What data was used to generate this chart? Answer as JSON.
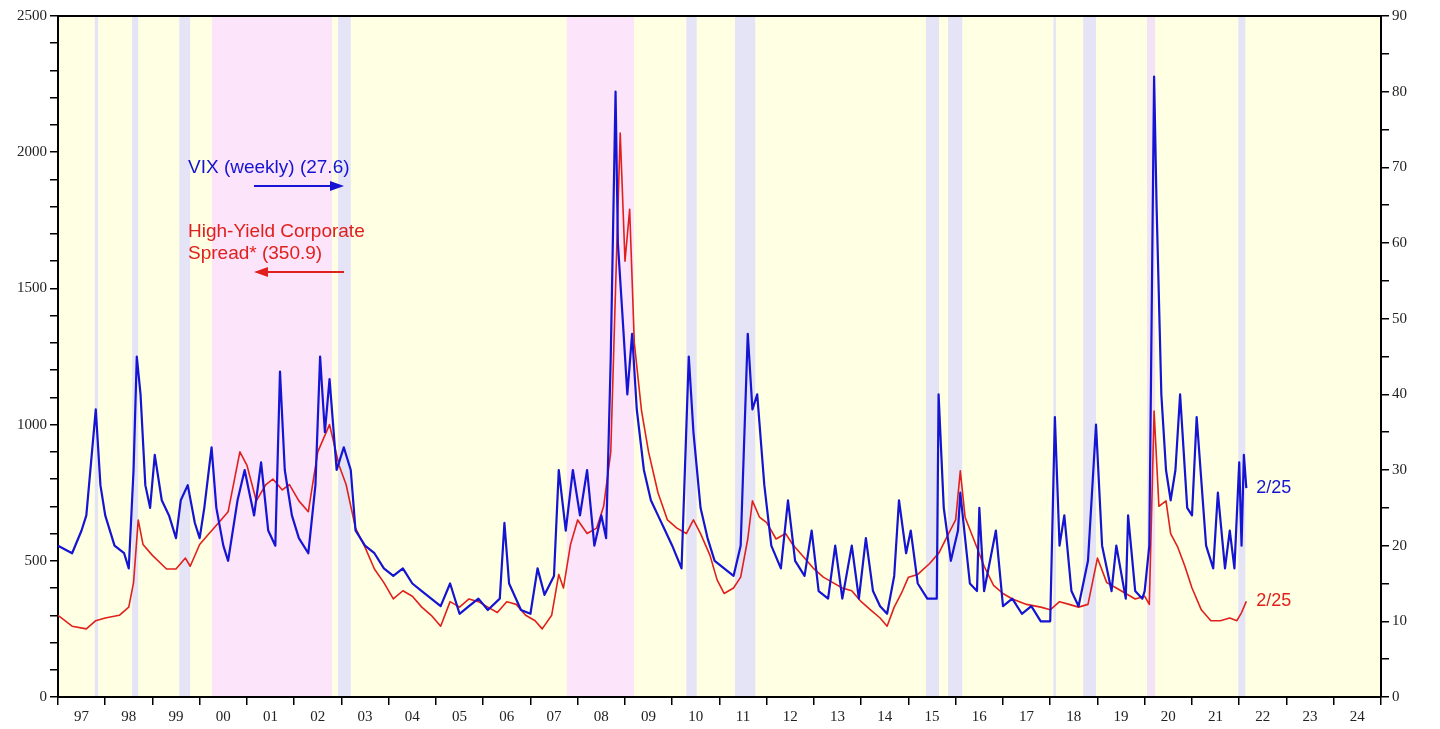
{
  "chart_data": {
    "type": "line",
    "xlim": [
      "1997-01-01",
      "2025-01-01"
    ],
    "xticks": [
      {
        "value": "1997-01-01",
        "label": null
      },
      {
        "value": "1997-07-02",
        "label": "97"
      },
      {
        "value": "1998-01-01",
        "label": null
      },
      {
        "value": "1998-07-02",
        "label": "98"
      },
      {
        "value": "1999-01-01",
        "label": null
      },
      {
        "value": "1999-07-02",
        "label": "99"
      },
      {
        "value": "2000-01-01",
        "label": null
      },
      {
        "value": "2000-07-02",
        "label": "00"
      },
      {
        "value": "2001-01-01",
        "label": null
      },
      {
        "value": "2001-07-02",
        "label": "01"
      },
      {
        "value": "2002-01-01",
        "label": null
      },
      {
        "value": "2002-07-02",
        "label": "02"
      },
      {
        "value": "2003-01-01",
        "label": null
      },
      {
        "value": "2003-07-02",
        "label": "03"
      },
      {
        "value": "2004-01-01",
        "label": null
      },
      {
        "value": "2004-07-02",
        "label": "04"
      },
      {
        "value": "2005-01-01",
        "label": null
      },
      {
        "value": "2005-07-02",
        "label": "05"
      },
      {
        "value": "2006-01-01",
        "label": null
      },
      {
        "value": "2006-07-02",
        "label": "06"
      },
      {
        "value": "2007-01-01",
        "label": null
      },
      {
        "value": "2007-07-02",
        "label": "07"
      },
      {
        "value": "2008-01-01",
        "label": null
      },
      {
        "value": "2008-07-02",
        "label": "08"
      },
      {
        "value": "2009-01-01",
        "label": null
      },
      {
        "value": "2009-07-02",
        "label": "09"
      },
      {
        "value": "2010-01-01",
        "label": null
      },
      {
        "value": "2010-07-02",
        "label": "10"
      },
      {
        "value": "2011-01-01",
        "label": null
      },
      {
        "value": "2011-07-02",
        "label": "11"
      },
      {
        "value": "2012-01-01",
        "label": null
      },
      {
        "value": "2012-07-02",
        "label": "12"
      },
      {
        "value": "2013-01-01",
        "label": null
      },
      {
        "value": "2013-07-02",
        "label": "13"
      },
      {
        "value": "2014-01-01",
        "label": null
      },
      {
        "value": "2014-07-02",
        "label": "14"
      },
      {
        "value": "2015-01-01",
        "label": null
      },
      {
        "value": "2015-07-02",
        "label": "15"
      },
      {
        "value": "2016-01-01",
        "label": null
      },
      {
        "value": "2016-07-02",
        "label": "16"
      },
      {
        "value": "2017-01-01",
        "label": null
      },
      {
        "value": "2017-07-02",
        "label": "17"
      },
      {
        "value": "2018-01-01",
        "label": null
      },
      {
        "value": "2018-07-02",
        "label": "18"
      },
      {
        "value": "2019-01-01",
        "label": null
      },
      {
        "value": "2019-07-02",
        "label": "19"
      },
      {
        "value": "2020-01-01",
        "label": null
      },
      {
        "value": "2020-07-02",
        "label": "20"
      },
      {
        "value": "2021-01-01",
        "label": null
      },
      {
        "value": "2021-07-02",
        "label": "21"
      },
      {
        "value": "2022-01-01",
        "label": null
      },
      {
        "value": "2022-07-02",
        "label": "22"
      },
      {
        "value": "2023-01-01",
        "label": null
      },
      {
        "value": "2023-07-02",
        "label": "23"
      },
      {
        "value": "2024-01-01",
        "label": null
      },
      {
        "value": "2024-07-02",
        "label": "24"
      },
      {
        "value": "2025-01-01",
        "label": null
      }
    ],
    "ylim": [
      0,
      2500
    ],
    "yticks": [
      0,
      {
        "value": 100,
        "label": null
      },
      {
        "value": 200,
        "label": null
      },
      {
        "value": 300,
        "label": null
      },
      {
        "value": 400,
        "label": null
      },
      500,
      {
        "value": 600,
        "label": null
      },
      {
        "value": 700,
        "label": null
      },
      {
        "value": 800,
        "label": null
      },
      {
        "value": 900,
        "label": null
      },
      1000,
      {
        "value": 1100,
        "label": null
      },
      {
        "value": 1200,
        "label": null
      },
      {
        "value": 1300,
        "label": null
      },
      {
        "value": 1400,
        "label": null
      },
      1500,
      {
        "value": 1600,
        "label": null
      },
      {
        "value": 1700,
        "label": null
      },
      {
        "value": 1800,
        "label": null
      },
      {
        "value": 1900,
        "label": null
      },
      2000,
      {
        "value": 2100,
        "label": null
      },
      {
        "value": 2200,
        "label": null
      },
      {
        "value": 2300,
        "label": null
      },
      {
        "value": 2400,
        "label": null
      },
      2500
    ],
    "y2lim": [
      0,
      90
    ],
    "y2ticks": [
      0,
      {
        "value": 5,
        "label": null
      },
      10,
      {
        "value": 15,
        "label": null
      },
      20,
      {
        "value": 25,
        "label": null
      },
      30,
      {
        "value": 35,
        "label": null
      },
      40,
      {
        "value": 45,
        "label": null
      },
      50,
      {
        "value": 55,
        "label": null
      },
      60,
      {
        "value": 65,
        "label": null
      },
      70,
      {
        "value": 75,
        "label": null
      },
      80,
      {
        "value": 85,
        "label": null
      },
      90
    ],
    "grid": false,
    "legend": "top left",
    "marker": "none",
    "annotations": [
      "2/25",
      "2/25"
    ],
    "bands": [
      {
        "axis": "x",
        "from": "2000-04-05",
        "to": "2002-10-20",
        "color": "#fce4fa"
      },
      {
        "axis": "x",
        "from": "2007-10-09",
        "to": "2009-03-11",
        "color": "#fce4fa"
      },
      {
        "axis": "x",
        "from": "1997-10-12",
        "to": "1997-11-07",
        "color": "#e4e4f6"
      },
      {
        "axis": "x",
        "from": "1998-07-28",
        "to": "1998-09-13",
        "color": "#e4e4f6"
      },
      {
        "axis": "x",
        "from": "1999-07-28",
        "to": "1999-10-20",
        "color": "#e4e4f6"
      },
      {
        "axis": "x",
        "from": "2002-12-06",
        "to": "2003-03-14",
        "color": "#e4e4f6"
      },
      {
        "axis": "x",
        "from": "2010-04-20",
        "to": "2010-07-09",
        "color": "#e4e4f6"
      },
      {
        "axis": "x",
        "from": "2011-05-01",
        "to": "2011-10-05",
        "color": "#e4e4f6"
      },
      {
        "axis": "x",
        "from": "2015-05-16",
        "to": "2015-08-26",
        "color": "#e4e4f6"
      },
      {
        "axis": "x",
        "from": "2015-11-03",
        "to": "2016-02-21",
        "color": "#e4e4f6"
      },
      {
        "axis": "x",
        "from": "2018-01-26",
        "to": "2018-02-14",
        "color": "#e4e4f6"
      },
      {
        "axis": "x",
        "from": "2018-09-13",
        "to": "2018-12-21",
        "color": "#e4e4f6"
      },
      {
        "axis": "x",
        "from": "2020-01-19",
        "to": "2020-03-22",
        "color": "#f2e4f4"
      },
      {
        "axis": "x",
        "from": "2021-12-25",
        "to": "2022-02-17",
        "color": "#e4e4f6"
      }
    ],
    "series": [
      {
        "name": "VIX (weekly) (27.6)",
        "color": "#1414d2",
        "axis": "y2",
        "x": [
          "1997-01-01",
          "1997-04-20",
          "1997-07-02",
          "1997-08-08",
          "1997-10-20",
          "1997-11-25",
          "1998-01-01",
          "1998-03-14",
          "1998-05-27",
          "1998-07-02",
          "1998-08-08",
          "1998-09-02",
          "1998-10-01",
          "1998-11-07",
          "1998-12-14",
          "1999-01-19",
          "1999-03-14",
          "1999-05-09",
          "1999-07-02",
          "1999-08-08",
          "1999-10-01",
          "1999-11-25",
          "2000-01-01",
          "2000-02-06",
          "2000-04-02",
          "2000-05-09",
          "2000-07-02",
          "2000-08-08",
          "2000-10-20",
          "2000-12-14",
          "2001-01-19",
          "2001-02-25",
          "2001-04-20",
          "2001-06-14",
          "2001-08-08",
          "2001-09-13",
          "2001-10-20",
          "2001-12-14",
          "2002-02-06",
          "2002-04-20",
          "2002-06-14",
          "2002-07-20",
          "2002-08-26",
          "2002-10-01",
          "2002-11-25",
          "2003-01-19",
          "2003-03-14",
          "2003-04-20",
          "2003-07-02",
          "2003-09-13",
          "2003-11-25",
          "2004-02-06",
          "2004-04-20",
          "2004-07-02",
          "2004-09-13",
          "2004-11-25",
          "2005-02-06",
          "2005-04-20",
          "2005-07-02",
          "2005-09-13",
          "2005-11-25",
          "2006-02-06",
          "2006-05-09",
          "2006-06-14",
          "2006-07-20",
          "2006-10-20",
          "2007-01-01",
          "2007-02-25",
          "2007-04-20",
          "2007-07-02",
          "2007-08-08",
          "2007-10-01",
          "2007-11-25",
          "2008-01-19",
          "2008-03-14",
          "2008-05-09",
          "2008-07-02",
          "2008-08-08",
          "2008-09-13",
          "2008-10-20",
          "2008-11-07",
          "2008-12-14",
          "2009-01-19",
          "2009-02-25",
          "2009-04-02",
          "2009-05-27",
          "2009-07-20",
          "2009-09-13",
          "2009-11-07",
          "2010-01-01",
          "2010-03-14",
          "2010-05-09",
          "2010-06-14",
          "2010-08-08",
          "2010-10-01",
          "2010-11-25",
          "2011-02-06",
          "2011-04-20",
          "2011-06-14",
          "2011-08-08",
          "2011-09-13",
          "2011-10-20",
          "2011-12-14",
          "2012-02-06",
          "2012-04-20",
          "2012-06-14",
          "2012-08-08",
          "2012-10-20",
          "2012-12-14",
          "2013-02-06",
          "2013-04-20",
          "2013-06-14",
          "2013-08-08",
          "2013-10-20",
          "2013-12-14",
          "2014-02-06",
          "2014-04-02",
          "2014-05-27",
          "2014-07-20",
          "2014-09-13",
          "2014-10-20",
          "2014-12-14",
          "2015-01-19",
          "2015-03-14",
          "2015-05-27",
          "2015-08-08",
          "2015-08-22",
          "2015-10-01",
          "2015-11-25",
          "2016-01-19",
          "2016-02-06",
          "2016-04-20",
          "2016-06-14",
          "2016-07-02",
          "2016-08-08",
          "2016-11-07",
          "2017-01-01",
          "2017-03-14",
          "2017-05-27",
          "2017-08-08",
          "2017-10-20",
          "2018-01-01",
          "2018-02-06",
          "2018-03-14",
          "2018-04-20",
          "2018-06-14",
          "2018-08-08",
          "2018-10-20",
          "2018-12-21",
          "2019-02-06",
          "2019-04-20",
          "2019-05-27",
          "2019-08-08",
          "2019-08-26",
          "2019-10-20",
          "2019-12-14",
          "2020-01-01",
          "2020-02-06",
          "2020-03-14",
          "2020-04-02",
          "2020-05-09",
          "2020-06-14",
          "2020-07-20",
          "2020-08-26",
          "2020-10-01",
          "2020-11-25",
          "2021-01-01",
          "2021-02-06",
          "2021-04-20",
          "2021-06-14",
          "2021-07-20",
          "2021-09-13",
          "2021-10-20",
          "2021-11-25",
          "2022-01-01",
          "2022-01-19",
          "2022-02-06",
          "2022-02-25"
        ],
        "values": [
          20,
          19,
          22,
          24,
          38,
          28,
          24,
          20,
          19,
          17,
          30,
          45,
          40,
          28,
          25,
          32,
          26,
          24,
          21,
          26,
          28,
          23,
          21,
          25,
          33,
          25,
          20,
          18,
          26,
          30,
          27,
          24,
          31,
          22,
          20,
          43,
          30,
          24,
          21,
          19,
          28,
          45,
          35,
          42,
          30,
          33,
          30,
          22,
          20,
          19,
          17,
          16,
          17,
          15,
          14,
          13,
          12,
          15,
          11,
          12,
          13,
          11.5,
          13,
          23,
          15,
          11.5,
          11,
          17,
          13.5,
          16,
          30,
          22,
          30,
          24,
          30,
          20,
          24,
          21,
          45,
          80,
          60,
          50,
          40,
          48,
          38,
          30,
          26,
          24,
          22,
          20,
          17,
          45,
          35,
          25,
          21,
          18,
          17,
          16,
          20,
          48,
          38,
          40,
          28,
          20,
          17,
          26,
          18,
          16,
          22,
          14,
          13,
          20,
          13,
          20,
          13,
          21,
          14,
          12,
          11,
          16,
          26,
          19,
          22,
          15,
          13,
          13,
          40,
          25,
          18,
          22,
          27,
          15,
          14,
          25,
          14,
          22,
          12,
          13,
          11,
          12,
          10,
          10,
          37,
          20,
          24,
          14,
          12,
          18,
          36,
          20,
          14,
          20,
          13,
          24,
          14,
          13,
          14,
          20,
          82,
          65,
          40,
          30,
          26,
          30,
          40,
          25,
          24,
          37,
          20,
          17,
          27,
          17,
          22,
          17,
          31,
          20,
          32,
          27.6
        ]
      },
      {
        "name": "High-Yield Corporate Spread* (350.9)",
        "color": "#e0201c",
        "axis": "y",
        "x": [
          "1997-01-01",
          "1997-04-20",
          "1997-08-08",
          "1997-10-20",
          "1998-01-01",
          "1998-04-20",
          "1998-07-02",
          "1998-08-08",
          "1998-09-13",
          "1998-10-20",
          "1999-01-01",
          "1999-04-20",
          "1999-07-02",
          "1999-09-13",
          "1999-10-20",
          "2000-01-01",
          "2000-03-14",
          "2000-05-27",
          "2000-08-08",
          "2000-11-07",
          "2001-01-01",
          "2001-03-14",
          "2001-05-27",
          "2001-07-20",
          "2001-10-01",
          "2001-11-25",
          "2002-02-06",
          "2002-04-20",
          "2002-07-02",
          "2002-10-01",
          "2002-12-14",
          "2003-02-06",
          "2003-04-20",
          "2003-07-02",
          "2003-09-13",
          "2003-11-25",
          "2004-02-06",
          "2004-04-20",
          "2004-07-02",
          "2004-09-13",
          "2004-11-25",
          "2005-01-01",
          "2005-02-06",
          "2005-04-20",
          "2005-07-02",
          "2005-09-13",
          "2005-11-25",
          "2006-02-06",
          "2006-04-20",
          "2006-07-02",
          "2006-09-13",
          "2006-11-25",
          "2007-02-06",
          "2007-04-02",
          "2007-06-14",
          "2007-08-08",
          "2007-09-13",
          "2007-11-07",
          "2008-01-01",
          "2008-03-14",
          "2008-05-27",
          "2008-07-20",
          "2008-09-13",
          "2008-10-20",
          "2008-11-25",
          "2009-01-01",
          "2009-02-06",
          "2009-03-14",
          "2009-05-09",
          "2009-07-02",
          "2009-09-13",
          "2009-11-25",
          "2010-02-06",
          "2010-04-20",
          "2010-06-14",
          "2010-08-08",
          "2010-10-20",
          "2010-12-14",
          "2011-02-06",
          "2011-04-20",
          "2011-06-14",
          "2011-08-08",
          "2011-09-13",
          "2011-11-07",
          "2012-01-01",
          "2012-03-14",
          "2012-05-27",
          "2012-07-20",
          "2012-10-20",
          "2013-01-01",
          "2013-03-14",
          "2013-05-27",
          "2013-08-08",
          "2013-10-20",
          "2014-01-01",
          "2014-03-14",
          "2014-05-27",
          "2014-07-20",
          "2014-09-13",
          "2014-11-07",
          "2015-01-01",
          "2015-03-14",
          "2015-06-14",
          "2015-08-26",
          "2015-11-07",
          "2016-01-01",
          "2016-02-06",
          "2016-03-14",
          "2016-05-27",
          "2016-08-08",
          "2016-10-20",
          "2017-01-01",
          "2017-03-14",
          "2017-07-02",
          "2017-10-20",
          "2018-01-01",
          "2018-03-14",
          "2018-05-27",
          "2018-08-08",
          "2018-10-20",
          "2019-01-01",
          "2019-03-14",
          "2019-05-27",
          "2019-08-08",
          "2019-10-20",
          "2020-01-01",
          "2020-02-06",
          "2020-03-14",
          "2020-04-20",
          "2020-06-14",
          "2020-07-20",
          "2020-09-13",
          "2020-11-07",
          "2021-01-01",
          "2021-03-14",
          "2021-05-27",
          "2021-08-08",
          "2021-10-20",
          "2021-12-14",
          "2022-01-19",
          "2022-02-25"
        ],
        "values": [
          300,
          260,
          250,
          280,
          290,
          300,
          330,
          420,
          650,
          560,
          520,
          470,
          470,
          510,
          480,
          560,
          600,
          640,
          680,
          900,
          850,
          720,
          780,
          800,
          760,
          780,
          720,
          680,
          900,
          1000,
          850,
          780,
          620,
          550,
          470,
          420,
          360,
          390,
          370,
          330,
          300,
          280,
          260,
          350,
          330,
          360,
          350,
          330,
          310,
          350,
          340,
          300,
          280,
          250,
          300,
          450,
          400,
          560,
          650,
          600,
          620,
          700,
          900,
          1500,
          2070,
          1600,
          1790,
          1300,
          1050,
          900,
          750,
          650,
          620,
          600,
          650,
          600,
          520,
          430,
          380,
          400,
          440,
          580,
          720,
          660,
          640,
          580,
          600,
          560,
          510,
          470,
          440,
          420,
          400,
          390,
          350,
          320,
          290,
          260,
          330,
          380,
          440,
          450,
          490,
          530,
          600,
          650,
          830,
          660,
          570,
          480,
          410,
          380,
          360,
          340,
          330,
          320,
          350,
          340,
          330,
          340,
          510,
          420,
          400,
          380,
          360,
          370,
          340,
          1050,
          700,
          720,
          600,
          550,
          480,
          400,
          320,
          280,
          280,
          290,
          280,
          310,
          351
        ]
      }
    ]
  }
}
